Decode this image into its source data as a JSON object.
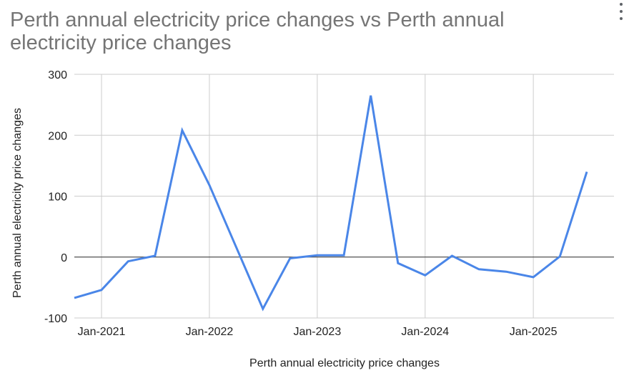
{
  "header": {
    "title": "Perth annual electricity price changes vs Perth annual electricity price changes",
    "menu_icon": "more-vert-icon"
  },
  "chart_data": {
    "type": "line",
    "title": "Perth annual electricity price changes vs Perth annual electricity price changes",
    "xlabel": "Perth annual electricity price changes",
    "ylabel": "Perth annual electricity price changes",
    "ylim": [
      -100,
      300
    ],
    "yticks": [
      -100,
      0,
      100,
      200,
      300
    ],
    "xlim": [
      "2020-10-01",
      "2025-10-01"
    ],
    "xticks": [
      "Jan-2021",
      "Jan-2022",
      "Jan-2023",
      "Jan-2024",
      "Jan-2025"
    ],
    "grid": true,
    "legend": "none",
    "series": [
      {
        "color": "#4a86e8",
        "x": [
          "2020-10-01",
          "2021-01-01",
          "2021-04-01",
          "2021-07-01",
          "2021-10-01",
          "2022-01-01",
          "2022-04-01",
          "2022-07-01",
          "2022-10-01",
          "2023-01-01",
          "2023-04-01",
          "2023-07-01",
          "2023-10-01",
          "2024-01-01",
          "2024-04-01",
          "2024-07-01",
          "2024-10-01",
          "2025-01-01",
          "2025-04-01",
          "2025-07-01",
          "2025-10-01"
        ],
        "values": [
          -67,
          -54,
          -7,
          2,
          208,
          118,
          17,
          -85,
          -2,
          3,
          3,
          265,
          -10,
          -30,
          2,
          -20,
          -24,
          -33,
          1,
          140,
          null
        ]
      }
    ]
  }
}
